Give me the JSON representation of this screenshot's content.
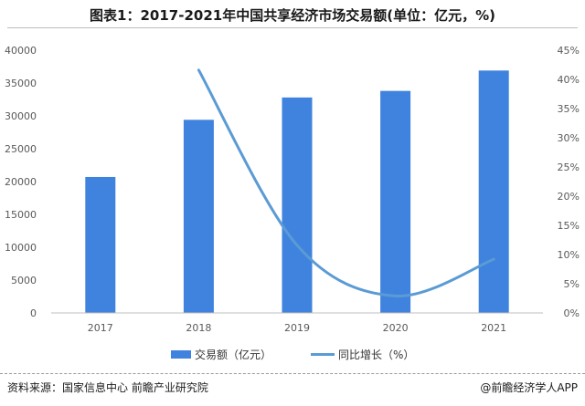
{
  "header": {
    "title": "图表1：2017-2021年中国共享经济市场交易额(单位：亿元，%)"
  },
  "footer": {
    "source": "资料来源：国家信息中心 前瞻产业研究院",
    "credit": "@前瞻经济学人APP"
  },
  "chart_data": {
    "type": "bar",
    "categories": [
      "2017",
      "2018",
      "2019",
      "2020",
      "2021"
    ],
    "series": [
      {
        "name": "交易额（亿元）",
        "type": "bar",
        "axis": "left",
        "color": "#3f83de",
        "values": [
          20700,
          29400,
          32800,
          33800,
          36900
        ]
      },
      {
        "name": "同比增长（%）",
        "type": "line",
        "axis": "right",
        "color": "#5b9bd5",
        "values": [
          null,
          41.6,
          11.6,
          2.9,
          9.2
        ]
      }
    ],
    "y_left": {
      "min": 0,
      "max": 40000,
      "ticks": [
        "0",
        "5000",
        "10000",
        "15000",
        "20000",
        "25000",
        "30000",
        "35000",
        "40000"
      ]
    },
    "y_right": {
      "min": 0,
      "max": 45,
      "ticks": [
        "0%",
        "5%",
        "10%",
        "15%",
        "20%",
        "25%",
        "30%",
        "35%",
        "40%",
        "45%"
      ]
    },
    "legend": {
      "position": "bottom"
    },
    "grid": false
  }
}
